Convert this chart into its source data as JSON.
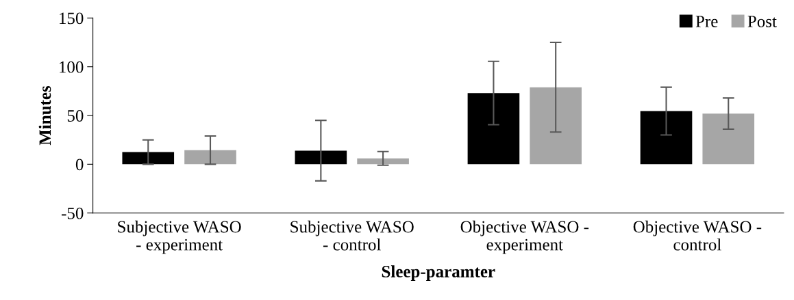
{
  "chart_data": {
    "type": "bar",
    "xlabel": "Sleep-paramter",
    "ylabel": "Minutes",
    "categories": [
      "Subjective WASO\n- experiment",
      "Subjective WASO\n- control",
      "Objective WASO -\nexperiment",
      "Objective WASO -\ncontrol"
    ],
    "series": [
      {
        "name": "Pre",
        "color": "#000000",
        "values": [
          12.5,
          14,
          73,
          54.5
        ],
        "errors": [
          12.5,
          31,
          32.5,
          24.5
        ]
      },
      {
        "name": "Post",
        "color": "#a6a6a6",
        "values": [
          14.5,
          6,
          79,
          52
        ],
        "errors": [
          14.5,
          7,
          46,
          16
        ]
      }
    ],
    "ylim": [
      -50,
      150
    ],
    "yticks": [
      -50,
      0,
      50,
      100,
      150
    ],
    "grid": false,
    "legend": "top right"
  }
}
